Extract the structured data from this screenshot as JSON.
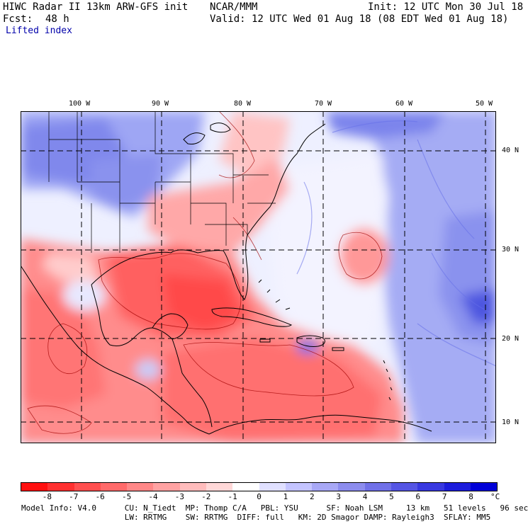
{
  "header": {
    "model": "HIWC Radar II 13km ARW-GFS init",
    "org": "NCAR/MMM",
    "init": "Init: 12 UTC Mon 30 Jul 18",
    "fcst_label": "Fcst:",
    "fcst_value": "48 h",
    "valid": "Valid: 12 UTC Wed 01 Aug 18 (08 EDT Wed 01 Aug 18)",
    "field": "Lifted index"
  },
  "map": {
    "lon_labels": [
      "100 W",
      "90 W",
      "80 W",
      "70 W",
      "60 W",
      "50 W"
    ],
    "lat_labels": [
      "40 N",
      "30 N",
      "20 N",
      "10 N"
    ]
  },
  "colorbar": {
    "labels": [
      "-8",
      "-7",
      "-6",
      "-5",
      "-4",
      "-3",
      "-2",
      "-1",
      "0",
      "1",
      "2",
      "3",
      "4",
      "5",
      "6",
      "7",
      "8"
    ],
    "unit": "°C",
    "colors": [
      "#ff1010",
      "#ff3030",
      "#ff4f4f",
      "#ff6a6a",
      "#ff8787",
      "#ffa2a2",
      "#ffbcbc",
      "#ffd8d8",
      "#ffffff",
      "#e0e0ff",
      "#c4c4ff",
      "#a8a8f6",
      "#8c8cee",
      "#7070e8",
      "#5555e4",
      "#3838e0",
      "#1c1cdc",
      "#0000d8"
    ]
  },
  "model_info": {
    "line1": "Model Info: V4.0      CU: N_Tiedt  MP: Thomp C/A   PBL: YSU      SF: Noah LSM     13 km   51 levels   96 sec",
    "line2": "                      LW: RRTMG    SW: RRTMG  DIFF: full   KM: 2D Smagor DAMP: Rayleigh3  SFLAY: MM5"
  }
}
